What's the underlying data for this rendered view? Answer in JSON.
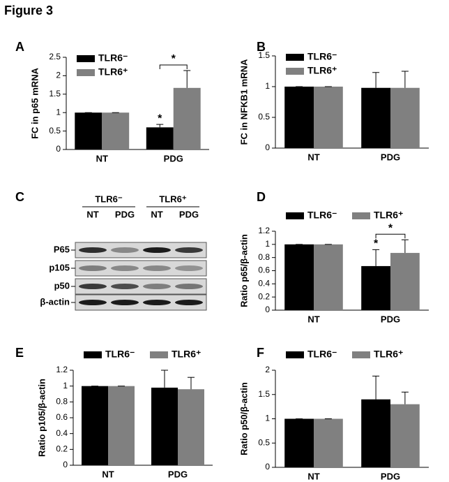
{
  "title": "Figure 3",
  "chart_data": [
    {
      "type": "bar",
      "label": "A",
      "y_label": "FC in p65 mRNA",
      "categories": [
        "NT",
        "PDG"
      ],
      "series": [
        {
          "name": "TLR6⁻",
          "color": "#000000",
          "values": [
            1,
            0.6
          ],
          "errors": [
            0,
            0.08
          ]
        },
        {
          "name": "TLR6⁺",
          "color": "#808080",
          "values": [
            1,
            1.67
          ],
          "errors": [
            0,
            0.47
          ]
        }
      ],
      "ylim": [
        0,
        2.5
      ],
      "yticks": [
        0,
        0.5,
        1,
        1.5,
        2,
        2.5
      ],
      "legend": "upper left",
      "annotations": [
        "*",
        "*"
      ]
    },
    {
      "type": "bar",
      "label": "B",
      "y_label": "FC in NFKB1 mRNA",
      "categories": [
        "NT",
        "PDG"
      ],
      "series": [
        {
          "name": "TLR6⁻",
          "color": "#000000",
          "values": [
            1,
            0.98
          ],
          "errors": [
            0,
            0.25
          ]
        },
        {
          "name": "TLR6⁺",
          "color": "#808080",
          "values": [
            1,
            0.98
          ],
          "errors": [
            0,
            0.27
          ]
        }
      ],
      "ylim": [
        0,
        1.5
      ],
      "yticks": [
        0,
        0.5,
        1,
        1.5
      ],
      "legend": "upper left"
    },
    {
      "type": "bar",
      "label": "D",
      "y_label": "Ratio p65/β-actin",
      "categories": [
        "NT",
        "PDG"
      ],
      "series": [
        {
          "name": "TLR6⁻",
          "color": "#000000",
          "values": [
            1,
            0.67
          ],
          "errors": [
            0,
            0.25
          ]
        },
        {
          "name": "TLR6⁺",
          "color": "#808080",
          "values": [
            1,
            0.87
          ],
          "errors": [
            0,
            0.2
          ]
        }
      ],
      "ylim": [
        0,
        1.2
      ],
      "yticks": [
        0,
        0.2,
        0.4,
        0.6,
        0.8,
        1,
        1.2
      ],
      "legend": "above",
      "annotations": [
        "*",
        "*"
      ]
    },
    {
      "type": "bar",
      "label": "E",
      "y_label": "Ratio p105/β-actin",
      "categories": [
        "NT",
        "PDG"
      ],
      "series": [
        {
          "name": "TLR6⁻",
          "color": "#000000",
          "values": [
            1,
            0.98
          ],
          "errors": [
            0,
            0.22
          ]
        },
        {
          "name": "TLR6⁺",
          "color": "#808080",
          "values": [
            1,
            0.96
          ],
          "errors": [
            0,
            0.15
          ]
        }
      ],
      "ylim": [
        0,
        1.2
      ],
      "yticks": [
        0,
        0.2,
        0.4,
        0.6,
        0.8,
        1,
        1.2
      ],
      "legend": "above"
    },
    {
      "type": "bar",
      "label": "F",
      "y_label": "Ratio p50/β-actin",
      "categories": [
        "NT",
        "PDG"
      ],
      "series": [
        {
          "name": "TLR6⁻",
          "color": "#000000",
          "values": [
            1,
            1.4
          ],
          "errors": [
            0,
            0.48
          ]
        },
        {
          "name": "TLR6⁺",
          "color": "#808080",
          "values": [
            1,
            1.3
          ],
          "errors": [
            0,
            0.25
          ]
        }
      ],
      "ylim": [
        0,
        2
      ],
      "yticks": [
        0,
        0.5,
        1,
        1.5,
        2
      ],
      "legend": "above"
    }
  ],
  "blot": {
    "label": "C",
    "groups": [
      "TLR6⁻",
      "TLR6⁺"
    ],
    "lanes": [
      "NT",
      "PDG",
      "NT",
      "PDG"
    ],
    "rows": [
      "P65",
      "p105",
      "p50",
      "β-actin"
    ]
  }
}
